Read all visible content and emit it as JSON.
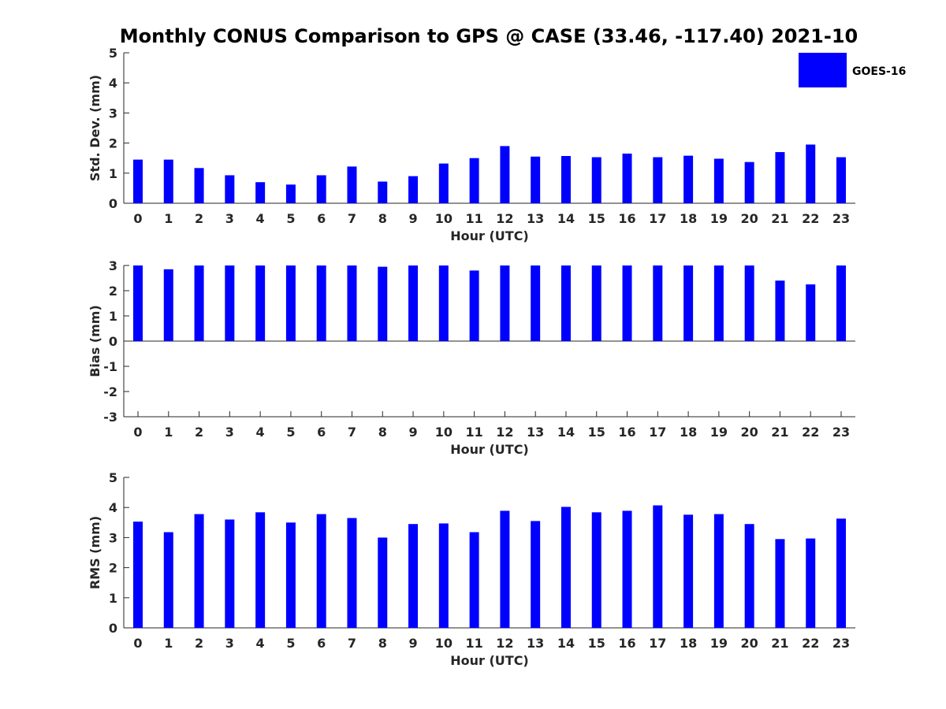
{
  "title": "Monthly CONUS Comparison to GPS @ CASE (33.46, -117.40) 2021-10",
  "legend": {
    "label": "GOES-16",
    "color": "#0000ff",
    "placement": "top-right"
  },
  "chart_data": [
    {
      "type": "bar",
      "xlabel": "Hour (UTC)",
      "ylabel": "Std. Dev. (mm)",
      "categories": [
        "0",
        "1",
        "2",
        "3",
        "4",
        "5",
        "6",
        "7",
        "8",
        "9",
        "10",
        "11",
        "12",
        "13",
        "14",
        "15",
        "16",
        "17",
        "18",
        "19",
        "20",
        "21",
        "22",
        "23"
      ],
      "series": [
        {
          "name": "GOES-16",
          "color": "#0000ff",
          "values": [
            1.45,
            1.45,
            1.17,
            0.93,
            0.7,
            0.62,
            0.93,
            1.22,
            0.72,
            0.9,
            1.32,
            1.5,
            1.9,
            1.55,
            1.57,
            1.53,
            1.65,
            1.53,
            1.58,
            1.48,
            1.37,
            1.7,
            1.95,
            1.53
          ]
        }
      ],
      "ylim": [
        0,
        5
      ],
      "yticks": [
        "0",
        "1",
        "2",
        "3",
        "4",
        "5"
      ]
    },
    {
      "type": "bar",
      "xlabel": "Hour (UTC)",
      "ylabel": "Bias (mm)",
      "categories": [
        "0",
        "1",
        "2",
        "3",
        "4",
        "5",
        "6",
        "7",
        "8",
        "9",
        "10",
        "11",
        "12",
        "13",
        "14",
        "15",
        "16",
        "17",
        "18",
        "19",
        "20",
        "21",
        "22",
        "23"
      ],
      "series": [
        {
          "name": "GOES-16",
          "color": "#0000ff",
          "values": [
            3.0,
            2.85,
            3.0,
            3.0,
            3.0,
            3.0,
            3.0,
            3.0,
            2.95,
            3.0,
            3.0,
            2.8,
            3.0,
            3.0,
            3.0,
            3.0,
            3.0,
            3.0,
            3.0,
            3.0,
            3.0,
            2.4,
            2.25,
            3.0
          ]
        }
      ],
      "ylim": [
        -3,
        3
      ],
      "yticks": [
        "-3",
        "-2",
        "-1",
        "0",
        "1",
        "2",
        "3"
      ]
    },
    {
      "type": "bar",
      "xlabel": "Hour (UTC)",
      "ylabel": "RMS (mm)",
      "categories": [
        "0",
        "1",
        "2",
        "3",
        "4",
        "5",
        "6",
        "7",
        "8",
        "9",
        "10",
        "11",
        "12",
        "13",
        "14",
        "15",
        "16",
        "17",
        "18",
        "19",
        "20",
        "21",
        "22",
        "23"
      ],
      "series": [
        {
          "name": "GOES-16",
          "color": "#0000ff",
          "values": [
            3.53,
            3.18,
            3.78,
            3.6,
            3.84,
            3.5,
            3.78,
            3.65,
            3.0,
            3.45,
            3.47,
            3.18,
            3.89,
            3.55,
            4.02,
            3.84,
            3.89,
            4.07,
            3.76,
            3.78,
            3.45,
            2.95,
            2.97,
            3.63
          ]
        }
      ],
      "ylim": [
        0,
        5
      ],
      "yticks": [
        "0",
        "1",
        "2",
        "3",
        "4",
        "5"
      ]
    }
  ]
}
